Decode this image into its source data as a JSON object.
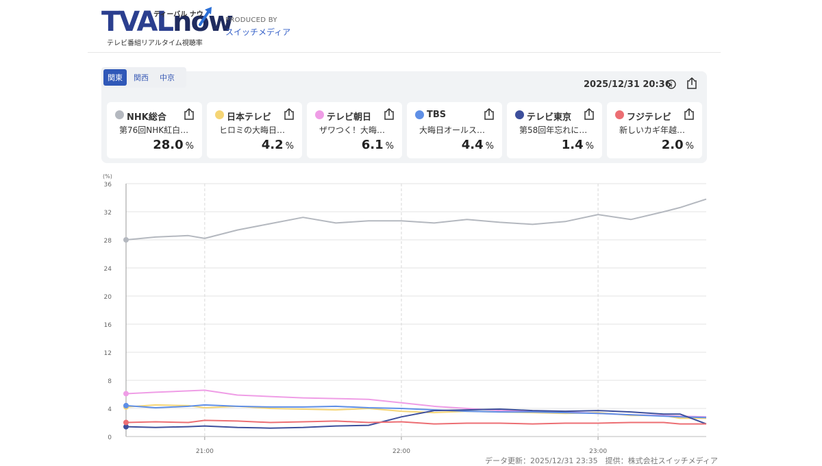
{
  "header": {
    "logo_text": "TVAL",
    "logo_now": "now",
    "logo_kana": "ティーバル ナウ",
    "logo_subtitle": "テレビ番組リアルタイム視聴率",
    "produced_by_label": "PRODUCED BY",
    "producer": "スイッチメディア"
  },
  "regions": [
    {
      "label": "関東",
      "active": true
    },
    {
      "label": "関西",
      "active": false
    },
    {
      "label": "中京",
      "active": false
    }
  ],
  "datetime": "2025/12/31 20:36",
  "channels": [
    {
      "name": "NHK総合",
      "program": "第76回NHK紅白…",
      "rating": "28.0",
      "unit": "%",
      "color": "#b4b8bf"
    },
    {
      "name": "日本テレビ",
      "program": "ヒロミの大晦日…",
      "rating": "4.2",
      "unit": "%",
      "color": "#f5d575"
    },
    {
      "name": "テレビ朝日",
      "program": "ザワつく！大晦…",
      "rating": "6.1",
      "unit": "%",
      "color": "#ef9de6"
    },
    {
      "name": "TBS",
      "program": "大晦日オールス…",
      "rating": "4.4",
      "unit": "%",
      "color": "#5f8fe6"
    },
    {
      "name": "テレビ東京",
      "program": "第58回年忘れに…",
      "rating": "1.4",
      "unit": "%",
      "color": "#3d4f9c"
    },
    {
      "name": "フジテレビ",
      "program": "新しいカギ年越…",
      "rating": "2.0",
      "unit": "%",
      "color": "#ec6e73"
    }
  ],
  "chart_data": {
    "type": "line",
    "ylabel": "(%)",
    "ylim": [
      0,
      36
    ],
    "yticks": [
      0,
      4,
      8,
      12,
      16,
      20,
      24,
      28,
      32,
      36
    ],
    "xlim": [
      "20:36",
      "23:33"
    ],
    "xticks": [
      "21:00",
      "22:00",
      "23:00"
    ],
    "x": [
      "20:36",
      "20:45",
      "20:55",
      "21:00",
      "21:10",
      "21:20",
      "21:30",
      "21:40",
      "21:50",
      "22:00",
      "22:10",
      "22:20",
      "22:30",
      "22:40",
      "22:50",
      "23:00",
      "23:10",
      "23:20",
      "23:25",
      "23:33"
    ],
    "series": [
      {
        "name": "NHK総合",
        "color": "#b4b8bf",
        "values": [
          28.0,
          28.4,
          28.6,
          28.2,
          29.4,
          30.3,
          31.2,
          30.4,
          30.7,
          30.7,
          30.4,
          30.9,
          30.5,
          30.2,
          30.6,
          31.6,
          30.9,
          32.0,
          32.6,
          33.8
        ]
      },
      {
        "name": "日本テレビ",
        "color": "#f5d575",
        "values": [
          4.2,
          4.5,
          4.4,
          4.1,
          4.3,
          4.0,
          3.9,
          3.8,
          4.0,
          3.6,
          3.4,
          3.6,
          3.5,
          3.4,
          3.3,
          3.4,
          3.0,
          3.0,
          2.6,
          2.6
        ]
      },
      {
        "name": "テレビ朝日",
        "color": "#ef9de6",
        "values": [
          6.1,
          6.3,
          6.5,
          6.6,
          5.9,
          5.7,
          5.5,
          5.4,
          5.3,
          4.8,
          4.3,
          4.0,
          3.7,
          3.6,
          3.5,
          3.3,
          3.1,
          3.0,
          2.9,
          2.8
        ]
      },
      {
        "name": "TBS",
        "color": "#5f8fe6",
        "values": [
          4.4,
          4.1,
          4.3,
          4.5,
          4.3,
          4.2,
          4.2,
          4.3,
          4.1,
          4.0,
          3.8,
          3.6,
          3.5,
          3.5,
          3.4,
          3.3,
          3.1,
          2.9,
          2.8,
          2.7
        ]
      },
      {
        "name": "テレビ東京",
        "color": "#3d4f9c",
        "values": [
          1.4,
          1.3,
          1.4,
          1.5,
          1.3,
          1.2,
          1.3,
          1.5,
          1.6,
          2.8,
          3.7,
          3.8,
          3.9,
          3.7,
          3.6,
          3.7,
          3.5,
          3.2,
          3.2,
          1.8
        ]
      },
      {
        "name": "フジテレビ",
        "color": "#ec6e73",
        "values": [
          2.0,
          2.1,
          2.0,
          2.3,
          2.2,
          2.0,
          2.1,
          2.2,
          2.0,
          2.1,
          1.8,
          1.9,
          1.9,
          1.8,
          1.9,
          1.9,
          2.0,
          2.0,
          1.8,
          1.8
        ]
      }
    ]
  },
  "footer": "データ更新：2025/12/31 23:35　提供：株式会社スイッチメディア"
}
